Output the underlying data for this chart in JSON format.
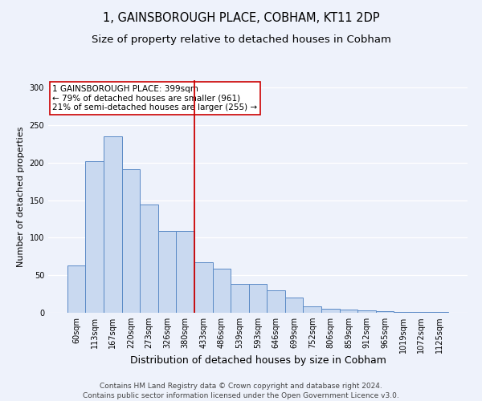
{
  "title": "1, GAINSBOROUGH PLACE, COBHAM, KT11 2DP",
  "subtitle": "Size of property relative to detached houses in Cobham",
  "xlabel": "Distribution of detached houses by size in Cobham",
  "ylabel": "Number of detached properties",
  "categories": [
    "60sqm",
    "113sqm",
    "167sqm",
    "220sqm",
    "273sqm",
    "326sqm",
    "380sqm",
    "433sqm",
    "486sqm",
    "539sqm",
    "593sqm",
    "646sqm",
    "699sqm",
    "752sqm",
    "806sqm",
    "859sqm",
    "912sqm",
    "965sqm",
    "1019sqm",
    "1072sqm",
    "1125sqm"
  ],
  "values": [
    63,
    202,
    235,
    191,
    144,
    109,
    109,
    67,
    59,
    39,
    38,
    30,
    20,
    9,
    5,
    4,
    3,
    2,
    1,
    1,
    1
  ],
  "bar_color": "#c9d9f0",
  "bar_edge_color": "#5a8ac6",
  "vline_x": 6.5,
  "vline_color": "#cc0000",
  "annotation_text": "1 GAINSBOROUGH PLACE: 399sqm\n← 79% of detached houses are smaller (961)\n21% of semi-detached houses are larger (255) →",
  "annotation_box_color": "#cc0000",
  "ylim": [
    0,
    310
  ],
  "footer_line1": "Contains HM Land Registry data © Crown copyright and database right 2024.",
  "footer_line2": "Contains public sector information licensed under the Open Government Licence v3.0.",
  "background_color": "#eef2fb",
  "plot_background_color": "#eef2fb",
  "grid_color": "#ffffff",
  "title_fontsize": 10.5,
  "subtitle_fontsize": 9.5,
  "tick_fontsize": 7,
  "ylabel_fontsize": 8,
  "xlabel_fontsize": 9,
  "footer_fontsize": 6.5,
  "annotation_fontsize": 7.5
}
